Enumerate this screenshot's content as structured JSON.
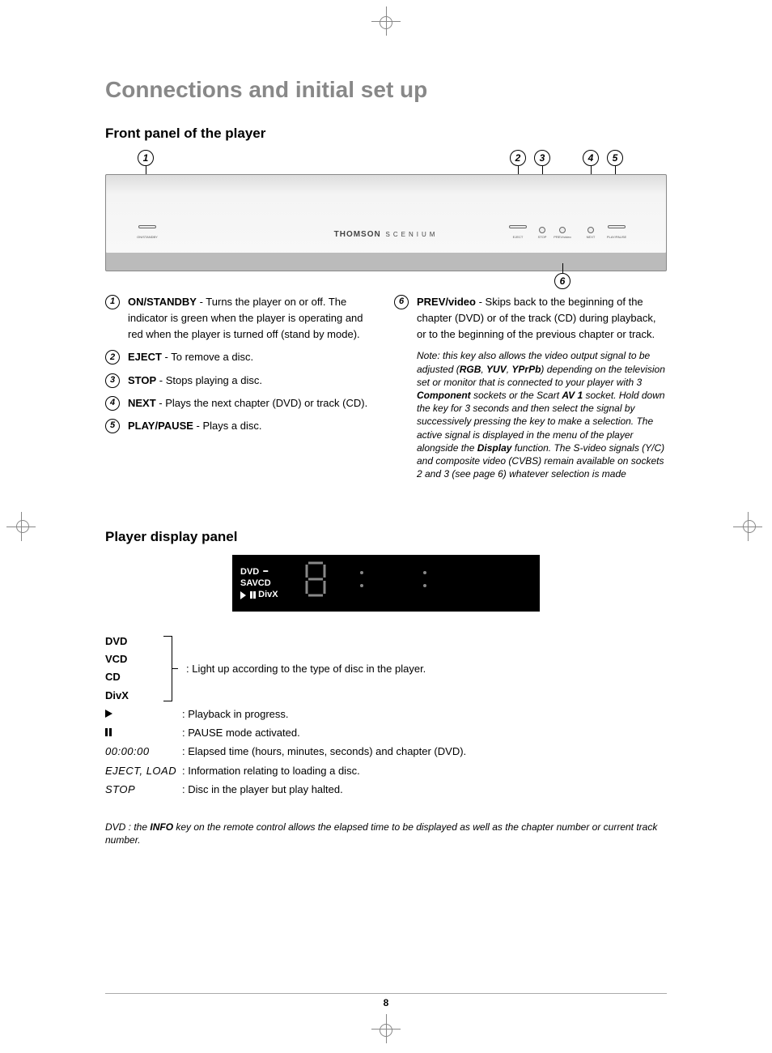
{
  "page_number": "8",
  "main_title": "Connections and initial set up",
  "section1": {
    "title": "Front panel of the player",
    "panel_logo": "THOMSON",
    "panel_logo_sub": "SCENIUM",
    "callouts": [
      "1",
      "2",
      "3",
      "4",
      "5",
      "6"
    ],
    "btn_labels": {
      "standby": "ON/STANDBY",
      "eject": "EJECT",
      "stop": "STOP",
      "prev": "PREV/video",
      "next": "NEXT",
      "play": "PLAY/PAUSE"
    },
    "items_left": [
      {
        "num": "1",
        "label": "ON/STANDBY",
        "text": " - Turns the player on or off. The indicator is green when the player is operating and red when the player is turned off (stand by mode)."
      },
      {
        "num": "2",
        "label": "EJECT",
        "text": " - To remove a disc."
      },
      {
        "num": "3",
        "label": "STOP",
        "text": " - Stops playing a disc."
      },
      {
        "num": "4",
        "label": "NEXT",
        "text": " - Plays the next chapter (DVD) or track (CD)."
      },
      {
        "num": "5",
        "label": "PLAY/PAUSE",
        "text": " - Plays a disc."
      }
    ],
    "items_right": [
      {
        "num": "6",
        "label": "PREV/video",
        "text": " - Skips back to the beginning of the chapter (DVD) or of the track (CD) during playback, or to the beginning of the previous chapter or track."
      }
    ],
    "note_html": "Note: this key also allows the video output signal to be adjusted (<b>RGB</b>, <b>YUV</b>, <b>YPrPb</b>) depending on the television set or monitor that is connected to your player with 3 <b>Component</b> sockets or the Scart <b>AV 1</b> socket. Hold down the key for 3 seconds and then select the signal by successively pressing the key to make a selection. The active signal is displayed in the menu of the player alongside the <b>Display</b> function. The S-video signals (Y/C) and composite video (CVBS) remain available on sockets 2 and 3 (see page 6) whatever selection is made"
  },
  "section2": {
    "title": "Player display panel",
    "panel": {
      "row1": [
        "DVD",
        "SAVCD"
      ],
      "row2_divx": "DivX"
    },
    "group_labels": [
      "DVD",
      "VCD",
      "CD",
      "DivX"
    ],
    "group_desc": ": Light up according to the type of disc in the player.",
    "rows": [
      {
        "sym": "play",
        "desc": ": Playback in progress."
      },
      {
        "sym": "pause",
        "desc": ": PAUSE mode activated."
      },
      {
        "sym": "00:00:00",
        "italic": true,
        "desc": ": Elapsed time (hours, minutes, seconds) and chapter (DVD)."
      },
      {
        "sym": "EJECT, LOAD",
        "italic": true,
        "desc": ": Information relating to loading a disc."
      },
      {
        "sym": "STOP",
        "italic": true,
        "desc": ": Disc in the player but play halted."
      }
    ],
    "footnote_html": "DVD : the <b>INFO</b> key on the remote control allows the elapsed time to be displayed as well as the chapter number or current track number."
  },
  "colors": {
    "title_gray": "#888888",
    "text": "#000000",
    "panel_bg": "#000000"
  }
}
